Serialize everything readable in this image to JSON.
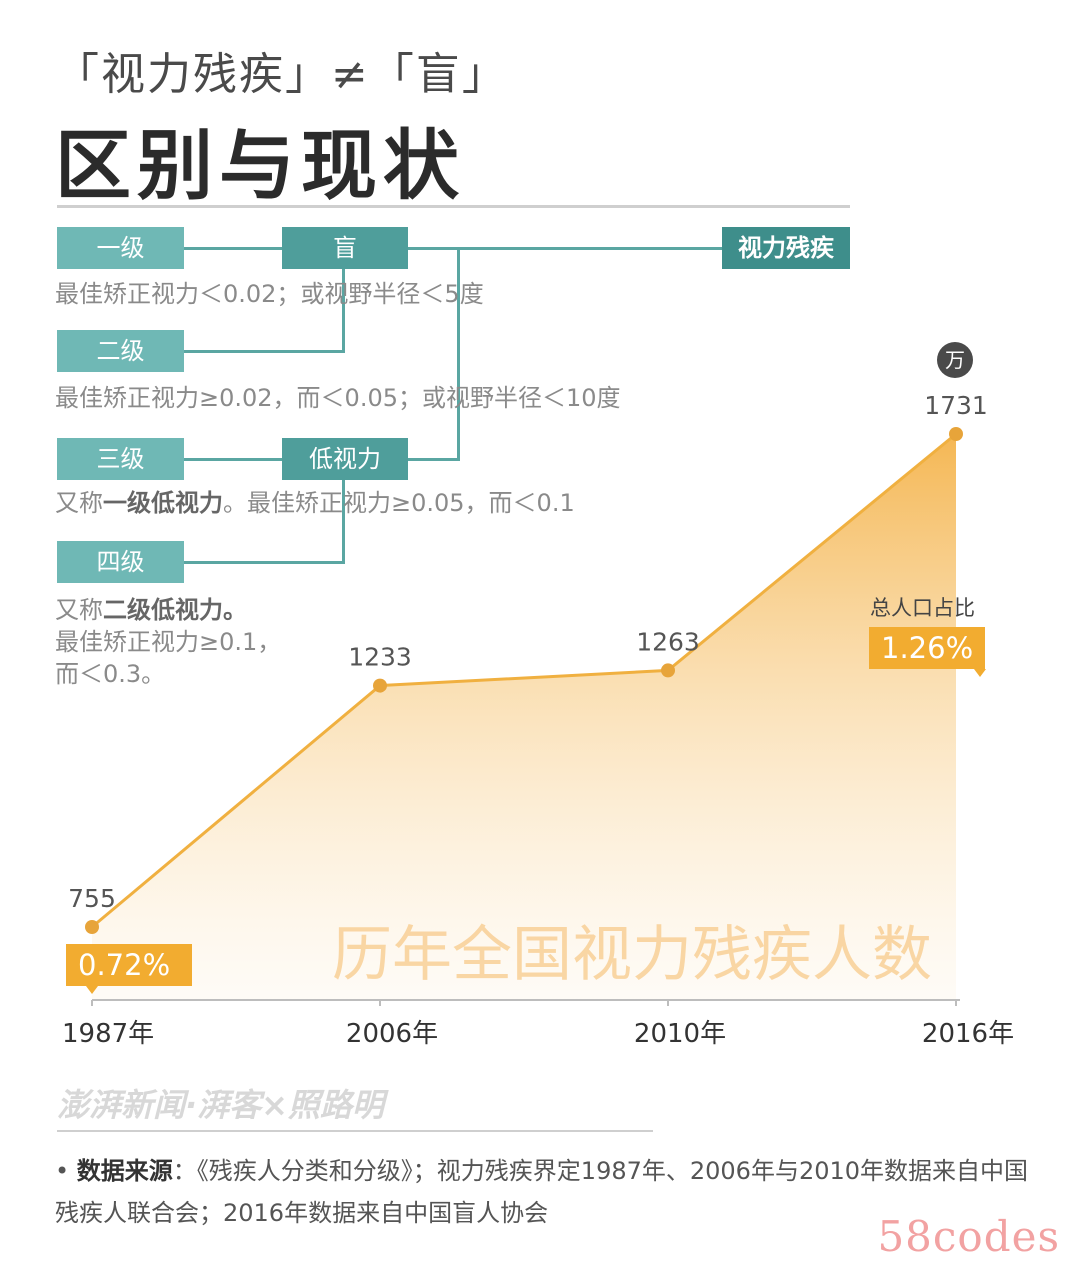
{
  "header": {
    "subtitle": "「视力残疾」≠「盲」",
    "title": "区别与现状"
  },
  "classification": {
    "levels": [
      {
        "label": "一级",
        "desc": "最佳矫正视力＜0.02；或视野半径＜5度"
      },
      {
        "label": "二级",
        "desc": "最佳矫正视力≥0.02，而＜0.05；或视野半径＜10度"
      },
      {
        "label": "三级",
        "desc_bold": "一级低视力",
        "desc_prefix": "又称",
        "desc_suffix": "。最佳矫正视力≥0.05，而＜0.1"
      },
      {
        "label": "四级",
        "desc_prefix": "又称",
        "desc_bold": "二级低视力",
        "desc_after_bold": "。",
        "desc_line2": "最佳矫正视力≥0.1，",
        "desc_line3": "而＜0.3。"
      }
    ],
    "blind_label": "盲",
    "low_vision_label": "低视力",
    "category_label": "视力残疾"
  },
  "chart_data": {
    "type": "area",
    "title": "历年全国视力残疾人数",
    "unit": "万",
    "x": [
      "1987年",
      "2006年",
      "2010年",
      "2016年"
    ],
    "values": [
      755,
      1233,
      1263,
      1731
    ],
    "data_labels": [
      "755",
      "1233",
      "1263",
      "1731"
    ],
    "ylim": [
      400,
      1731
    ],
    "annotations": {
      "share_label": "总人口占比",
      "share_start": "0.72%",
      "share_end": "1.26%"
    },
    "colors": {
      "area_top": "#f4b34a",
      "line": "#f0b040",
      "point": "#e7a43a"
    }
  },
  "footer": {
    "brand": "澎湃新闻·湃客×照路明",
    "source_label": "数据来源",
    "source_text": "：《残疾人分类和分级》；视力残疾界定1987年、2006年与2010年数据来自中国残疾人联合会；2016年数据来自中国盲人协会",
    "watermark": "58codes"
  }
}
